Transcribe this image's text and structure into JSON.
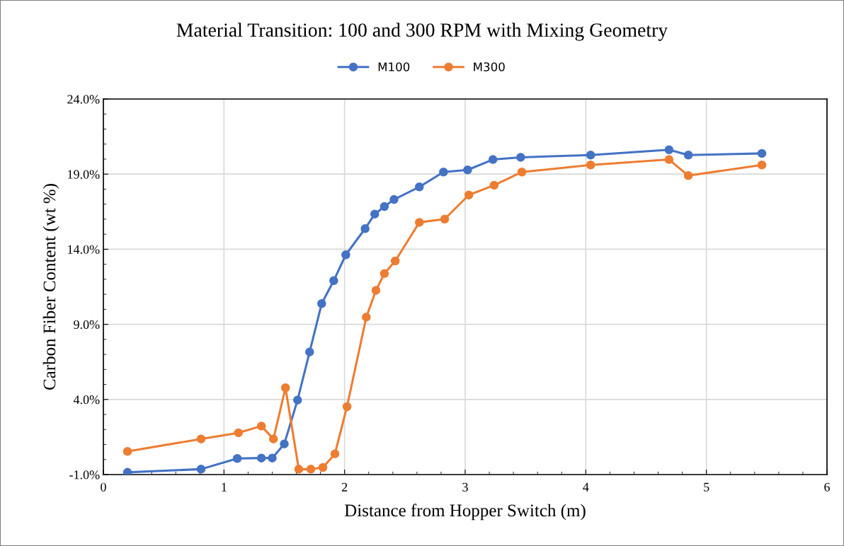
{
  "chart_data": {
    "type": "line",
    "title": "Material Transition: 100 and 300 RPM with Mixing Geometry",
    "xlabel": "Distance from Hopper Switch (m)",
    "ylabel": "Carbon Fiber Content (wt %)",
    "xlim": [
      0,
      6
    ],
    "xticks": [
      0,
      1,
      2,
      3,
      4,
      5,
      6
    ],
    "ylim": [
      -1,
      24
    ],
    "yticks": [
      {
        "value": -1,
        "label": "-1.0%"
      },
      {
        "value": 4,
        "label": "4.0%"
      },
      {
        "value": 9,
        "label": "9.0%"
      },
      {
        "value": 14,
        "label": "14.0%"
      },
      {
        "value": 19,
        "label": "19.0%"
      },
      {
        "value": 24,
        "label": "24.0%"
      }
    ],
    "grid": true,
    "legend": "top",
    "marker": "circle",
    "line_style": "solid",
    "series": [
      {
        "name": "M100",
        "color": "#4472c4",
        "x": [
          0.2,
          0.81,
          1.11,
          1.31,
          1.4,
          1.5,
          1.61,
          1.71,
          1.81,
          1.91,
          2.01,
          2.17,
          2.25,
          2.33,
          2.41,
          2.62,
          2.82,
          3.02,
          3.23,
          3.46,
          4.04,
          4.69,
          4.85,
          5.46
        ],
        "values": [
          -0.85,
          -0.64,
          0.07,
          0.1,
          0.1,
          1.04,
          3.96,
          7.16,
          10.38,
          11.91,
          13.63,
          15.37,
          16.34,
          16.84,
          17.31,
          18.15,
          19.14,
          19.28,
          19.97,
          20.12,
          20.27,
          20.62,
          20.27,
          20.38
        ]
      },
      {
        "name": "M300",
        "color": "#ed7d31",
        "x": [
          0.2,
          0.81,
          1.12,
          1.31,
          1.41,
          1.51,
          1.62,
          1.72,
          1.82,
          1.92,
          2.02,
          2.18,
          2.26,
          2.33,
          2.42,
          2.62,
          2.83,
          3.03,
          3.24,
          3.47,
          4.04,
          4.69,
          4.85,
          5.46
        ],
        "values": [
          0.54,
          1.37,
          1.78,
          2.23,
          1.37,
          4.78,
          -0.64,
          -0.64,
          -0.53,
          0.38,
          3.52,
          9.48,
          11.26,
          12.38,
          13.22,
          15.79,
          16.01,
          17.61,
          18.26,
          19.14,
          19.61,
          19.97,
          18.9,
          19.61
        ]
      }
    ]
  }
}
